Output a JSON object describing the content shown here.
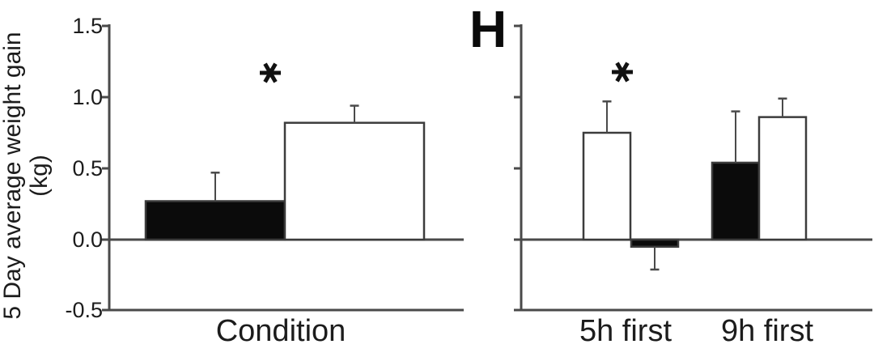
{
  "figure": {
    "panel_label": "H",
    "y_axis_title": {
      "line1": "5 Day average weight gain",
      "line2": "(kg)"
    }
  },
  "colors": {
    "bar_black_fill": "#0b0b0b",
    "bar_white_fill": "#ffffff",
    "bar_stroke": "#3c3c3c",
    "axis": "#4a4a4a",
    "error_bar": "#4a4a4a",
    "text": "#1c1c1c"
  },
  "chart_data": [
    {
      "type": "bar",
      "panel": "left",
      "title": "",
      "xlabel": "Condition",
      "ylabel": "5 Day average weight gain (kg)",
      "ylim": [
        -0.5,
        1.5
      ],
      "yticks": [
        1.5,
        1.0,
        0.5,
        0.0,
        -0.5
      ],
      "ytick_labels": [
        "1.5",
        "1.0",
        "0.5",
        "0.0",
        "-0.5"
      ],
      "ytick_labels_shown": true,
      "grid": false,
      "legend": "none",
      "groups": [
        {
          "label": "Condition",
          "significance": "*",
          "bars": [
            {
              "fill": "black",
              "value": 0.27,
              "error_up": 0.2
            },
            {
              "fill": "white",
              "value": 0.82,
              "error_up": 0.12
            }
          ]
        }
      ]
    },
    {
      "type": "bar",
      "panel": "right",
      "panel_label": "H",
      "title": "",
      "xlabel": "",
      "ylabel": "",
      "ylim": [
        -0.5,
        1.5
      ],
      "yticks": [
        1.5,
        1.0,
        0.5,
        0.0,
        -0.5
      ],
      "ytick_labels": [],
      "ytick_labels_shown": false,
      "grid": false,
      "legend": "none",
      "groups": [
        {
          "label": "5h first",
          "significance": "*",
          "bars": [
            {
              "fill": "white",
              "value": 0.75,
              "error_up": 0.22
            },
            {
              "fill": "black",
              "value": -0.05,
              "error_down": 0.16
            }
          ]
        },
        {
          "label": "9h first",
          "significance": "",
          "bars": [
            {
              "fill": "black",
              "value": 0.54,
              "error_up": 0.36
            },
            {
              "fill": "white",
              "value": 0.86,
              "error_up": 0.13
            }
          ]
        }
      ]
    }
  ]
}
